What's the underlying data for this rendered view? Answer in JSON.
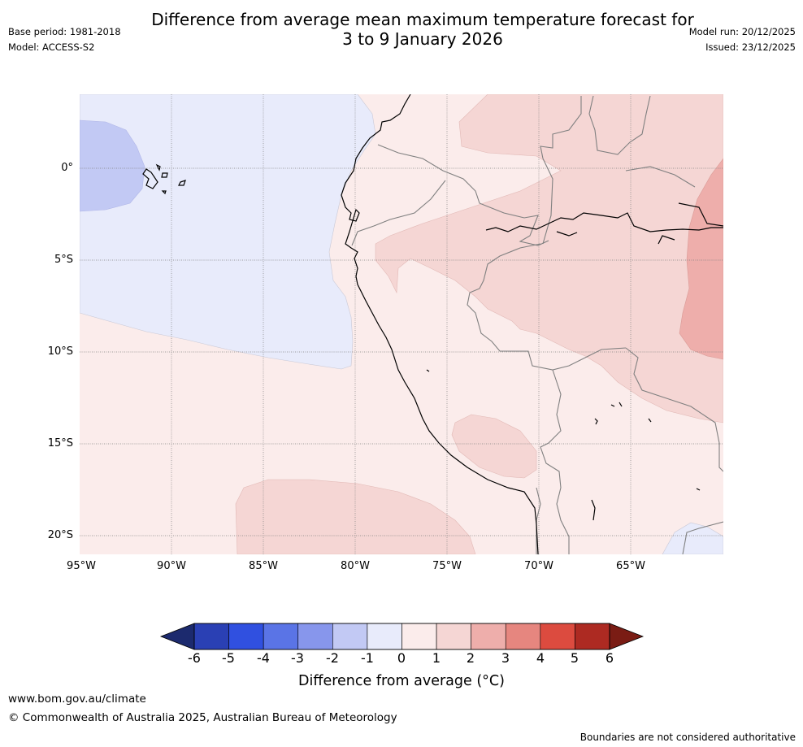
{
  "title_line1": "Difference from average mean maximum temperature forecast for",
  "title_line2": "3 to 9 January 2026",
  "base_period": "Base period: 1981-2018",
  "model": "Model: ACCESS-S2",
  "model_run": "Model run: 20/12/2025",
  "issued": "Issued: 23/12/2025",
  "map": {
    "lat_labels": [
      "0°",
      "5°S",
      "10°S",
      "15°S",
      "20°S"
    ],
    "lon_labels": [
      "95°W",
      "90°W",
      "85°W",
      "80°W",
      "75°W",
      "70°W",
      "65°W"
    ]
  },
  "colorbar": {
    "ticks": [
      "-6",
      "-5",
      "-4",
      "-3",
      "-2",
      "-1",
      "0",
      "1",
      "2",
      "3",
      "4",
      "5",
      "6"
    ],
    "label": "Difference from average (°C)",
    "colors": {
      "below": "#1c2a6e",
      "bins": [
        "#2a40b4",
        "#3050e0",
        "#5a74e6",
        "#8796ec",
        "#c2c9f4",
        "#e8ebfb",
        "#fbeceb",
        "#f5d6d4",
        "#eeaeab",
        "#e6867f",
        "#dc4b3f",
        "#ad2a22"
      ],
      "above": "#7a1c14"
    }
  },
  "footer": {
    "url": "www.bom.gov.au/climate",
    "copyright": "© Commonwealth of Australia 2025, Australian Bureau of Meteorology",
    "disclaimer": "Boundaries are not considered authoritative"
  }
}
